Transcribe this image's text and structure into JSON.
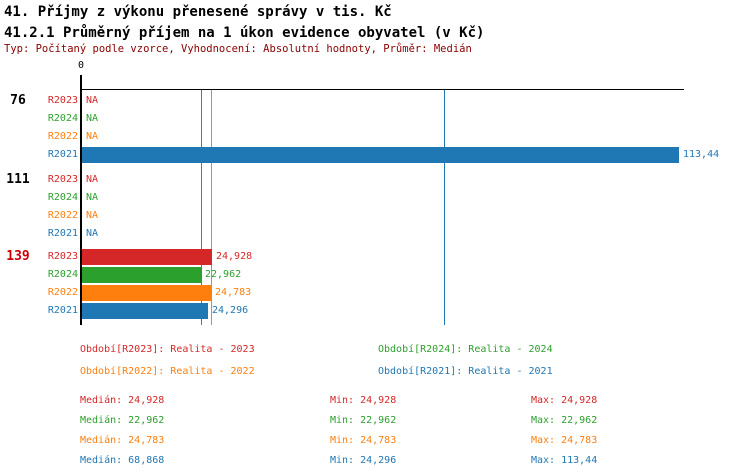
{
  "header": {
    "title1": "41. Příjmy z výkonu přenesené správy v tis. Kč",
    "title2": "41.2.1 Průměrný příjem na 1 úkon evidence obyvatel (v Kč)",
    "meta": "Typ: Počítaný podle vzorce, Vyhodnocení: Absolutní hodnoty, Průměr: Medián"
  },
  "colors": {
    "R2023": "#d62728",
    "R2024": "#2ca02c",
    "R2022": "#ff7f0e",
    "R2021": "#1f77b4",
    "meta_text": "#8b0000",
    "axis": "#000000",
    "highlighted_group": "#d10000"
  },
  "chart_data": {
    "type": "bar",
    "orientation": "horizontal",
    "title": "41.2.1 Průměrný příjem na 1 úkon evidence obyvatel (v Kč)",
    "xlabel": "",
    "ylabel": "",
    "axis": {
      "zero_label": "0",
      "xmin": 0,
      "xmax": 113.44,
      "grid": false
    },
    "legend_position": "bottom",
    "series_order": [
      "R2023",
      "R2024",
      "R2022",
      "R2021"
    ],
    "groups": [
      {
        "label": "76",
        "highlighted": false,
        "rows": [
          {
            "series": "R2023",
            "value": null,
            "display": "NA"
          },
          {
            "series": "R2024",
            "value": null,
            "display": "NA"
          },
          {
            "series": "R2022",
            "value": null,
            "display": "NA"
          },
          {
            "series": "R2021",
            "value": 113.44,
            "display": "113,44"
          }
        ]
      },
      {
        "label": "111",
        "highlighted": false,
        "rows": [
          {
            "series": "R2023",
            "value": null,
            "display": "NA"
          },
          {
            "series": "R2024",
            "value": null,
            "display": "NA"
          },
          {
            "series": "R2022",
            "value": null,
            "display": "NA"
          },
          {
            "series": "R2021",
            "value": null,
            "display": "NA"
          }
        ]
      },
      {
        "label": "139",
        "highlighted": true,
        "rows": [
          {
            "series": "R2023",
            "value": 24.928,
            "display": "24,928"
          },
          {
            "series": "R2024",
            "value": 22.962,
            "display": "22,962"
          },
          {
            "series": "R2022",
            "value": 24.783,
            "display": "24,783"
          },
          {
            "series": "R2021",
            "value": 24.296,
            "display": "24,296"
          }
        ]
      }
    ],
    "median_lines": [
      {
        "series": "R2024",
        "value": 22.962
      },
      {
        "series": "R2022",
        "value": 24.783
      },
      {
        "series": "R2021",
        "value": 68.868
      }
    ]
  },
  "legend": {
    "items": [
      {
        "series": "R2023",
        "label": "Období[R2023]: Realita - 2023"
      },
      {
        "series": "R2024",
        "label": "Období[R2024]: Realita - 2024"
      },
      {
        "series": "R2022",
        "label": "Období[R2022]: Realita - 2022"
      },
      {
        "series": "R2021",
        "label": "Období[R2021]: Realita - 2021"
      }
    ]
  },
  "stats": {
    "labels": {
      "median": "Medián",
      "min": "Min",
      "max": "Max"
    },
    "rows": [
      {
        "series": "R2023",
        "median": "24,928",
        "min": "24,928",
        "max": "24,928"
      },
      {
        "series": "R2024",
        "median": "22,962",
        "min": "22,962",
        "max": "22,962"
      },
      {
        "series": "R2022",
        "median": "24,783",
        "min": "24,783",
        "max": "24,783"
      },
      {
        "series": "R2021",
        "median": "68,868",
        "min": "24,296",
        "max": "113,44"
      }
    ]
  }
}
